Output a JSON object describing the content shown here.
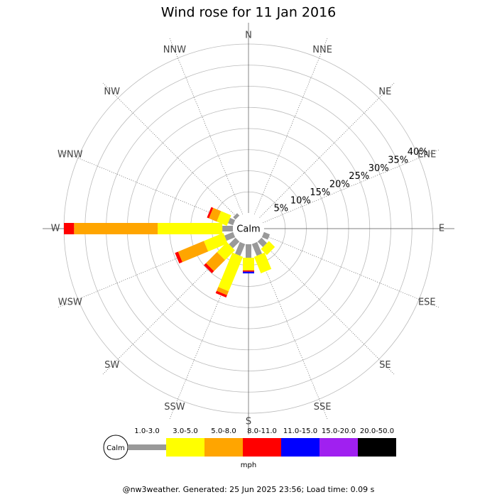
{
  "chart_data": {
    "type": "wind-rose",
    "title": "Wind rose for 11 Jan 2016",
    "categories": [
      "N",
      "NNE",
      "NE",
      "ENE",
      "E",
      "ESE",
      "SE",
      "SSE",
      "S",
      "SSW",
      "SW",
      "WSW",
      "W",
      "WNW",
      "NW",
      "NNW"
    ],
    "series": [
      {
        "name": "1.0-3.0",
        "color": "#999999",
        "values": [
          0,
          0,
          0,
          0,
          0,
          1.5,
          1.8,
          3.0,
          3.2,
          3.0,
          2.2,
          2.2,
          2.5,
          1.3,
          0.8,
          0
        ]
      },
      {
        "name": "3.0-5.0",
        "color": "#ffff00",
        "values": [
          0,
          0,
          0,
          0,
          0,
          0,
          2.0,
          4.2,
          3.0,
          8.8,
          3.3,
          5.0,
          15.3,
          2.6,
          0,
          0
        ]
      },
      {
        "name": "5.0-8.0",
        "color": "#ffa500",
        "values": [
          0,
          0,
          0,
          0,
          0,
          0,
          0,
          0,
          0,
          1.0,
          3.7,
          6.6,
          19.8,
          2.0,
          0,
          0
        ]
      },
      {
        "name": "8.0-11.0",
        "color": "#ff0000",
        "values": [
          0,
          0,
          0,
          0,
          0,
          0,
          0,
          0,
          0.3,
          0.6,
          0.7,
          0.8,
          2.4,
          0.5,
          0,
          0
        ]
      },
      {
        "name": "11.0-15.0",
        "color": "#0000ff",
        "values": [
          0,
          0,
          0,
          0,
          0,
          0,
          0,
          0,
          0.4,
          0,
          0,
          0,
          0,
          0,
          0,
          0
        ]
      },
      {
        "name": "15.0-20.0",
        "color": "#a020f0",
        "values": [
          0,
          0,
          0,
          0,
          0,
          0,
          0,
          0,
          0,
          0,
          0,
          0,
          0,
          0,
          0,
          0
        ]
      },
      {
        "name": "20.0-50.0",
        "color": "#000000",
        "values": [
          0,
          0,
          0,
          0,
          0,
          0,
          0,
          0,
          0,
          0,
          0,
          0,
          0,
          0,
          0,
          0
        ]
      }
    ],
    "rlim": [
      0,
      40
    ],
    "rticks": [
      {
        "value": 5,
        "label": "5%"
      },
      {
        "value": 10,
        "label": "10%"
      },
      {
        "value": 15,
        "label": "15%"
      },
      {
        "value": 20,
        "label": "20%"
      },
      {
        "value": 25,
        "label": "25%"
      },
      {
        "value": 30,
        "label": "30%"
      },
      {
        "value": 35,
        "label": "35%"
      },
      {
        "value": 40,
        "label": "40%"
      }
    ],
    "calm_label": "Calm",
    "legend_unit": "mph",
    "footer": "@nw3weather. Generated: 25 Jun 2025 23:56; Load time: 0.09 s"
  }
}
